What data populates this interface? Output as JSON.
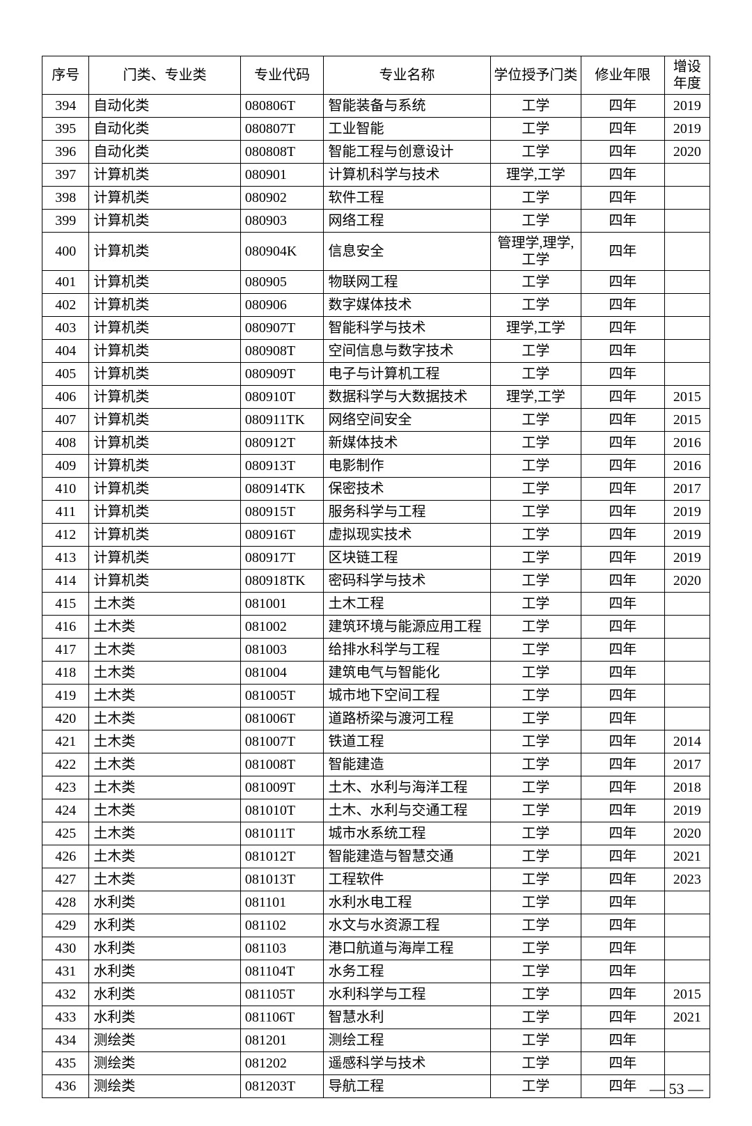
{
  "table": {
    "columns": [
      "序号",
      "门类、专业类",
      "专业代码",
      "专业名称",
      "学位授予门类",
      "修业年限",
      "增设年度"
    ],
    "col_classes": [
      "col-seq",
      "col-cat",
      "col-code",
      "col-name",
      "col-degree",
      "col-years",
      "col-added"
    ],
    "header_align": "center",
    "font_size_pt": 15,
    "border_color": "#000000",
    "background_color": "#ffffff",
    "rows": [
      [
        "394",
        "自动化类",
        "080806T",
        "智能装备与系统",
        "工学",
        "四年",
        "2019"
      ],
      [
        "395",
        "自动化类",
        "080807T",
        "工业智能",
        "工学",
        "四年",
        "2019"
      ],
      [
        "396",
        "自动化类",
        "080808T",
        "智能工程与创意设计",
        "工学",
        "四年",
        "2020"
      ],
      [
        "397",
        "计算机类",
        "080901",
        "计算机科学与技术",
        "理学,工学",
        "四年",
        ""
      ],
      [
        "398",
        "计算机类",
        "080902",
        "软件工程",
        "工学",
        "四年",
        ""
      ],
      [
        "399",
        "计算机类",
        "080903",
        "网络工程",
        "工学",
        "四年",
        ""
      ],
      [
        "400",
        "计算机类",
        "080904K",
        "信息安全",
        "管理学,理学,工学",
        "四年",
        ""
      ],
      [
        "401",
        "计算机类",
        "080905",
        "物联网工程",
        "工学",
        "四年",
        ""
      ],
      [
        "402",
        "计算机类",
        "080906",
        "数字媒体技术",
        "工学",
        "四年",
        ""
      ],
      [
        "403",
        "计算机类",
        "080907T",
        "智能科学与技术",
        "理学,工学",
        "四年",
        ""
      ],
      [
        "404",
        "计算机类",
        "080908T",
        "空间信息与数字技术",
        "工学",
        "四年",
        ""
      ],
      [
        "405",
        "计算机类",
        "080909T",
        "电子与计算机工程",
        "工学",
        "四年",
        ""
      ],
      [
        "406",
        "计算机类",
        "080910T",
        "数据科学与大数据技术",
        "理学,工学",
        "四年",
        "2015"
      ],
      [
        "407",
        "计算机类",
        "080911TK",
        "网络空间安全",
        "工学",
        "四年",
        "2015"
      ],
      [
        "408",
        "计算机类",
        "080912T",
        "新媒体技术",
        "工学",
        "四年",
        "2016"
      ],
      [
        "409",
        "计算机类",
        "080913T",
        "电影制作",
        "工学",
        "四年",
        "2016"
      ],
      [
        "410",
        "计算机类",
        "080914TK",
        "保密技术",
        "工学",
        "四年",
        "2017"
      ],
      [
        "411",
        "计算机类",
        "080915T",
        "服务科学与工程",
        "工学",
        "四年",
        "2019"
      ],
      [
        "412",
        "计算机类",
        "080916T",
        "虚拟现实技术",
        "工学",
        "四年",
        "2019"
      ],
      [
        "413",
        "计算机类",
        "080917T",
        "区块链工程",
        "工学",
        "四年",
        "2019"
      ],
      [
        "414",
        "计算机类",
        "080918TK",
        "密码科学与技术",
        "工学",
        "四年",
        "2020"
      ],
      [
        "415",
        "土木类",
        "081001",
        "土木工程",
        "工学",
        "四年",
        ""
      ],
      [
        "416",
        "土木类",
        "081002",
        "建筑环境与能源应用工程",
        "工学",
        "四年",
        ""
      ],
      [
        "417",
        "土木类",
        "081003",
        "给排水科学与工程",
        "工学",
        "四年",
        ""
      ],
      [
        "418",
        "土木类",
        "081004",
        "建筑电气与智能化",
        "工学",
        "四年",
        ""
      ],
      [
        "419",
        "土木类",
        "081005T",
        "城市地下空间工程",
        "工学",
        "四年",
        ""
      ],
      [
        "420",
        "土木类",
        "081006T",
        "道路桥梁与渡河工程",
        "工学",
        "四年",
        ""
      ],
      [
        "421",
        "土木类",
        "081007T",
        "铁道工程",
        "工学",
        "四年",
        "2014"
      ],
      [
        "422",
        "土木类",
        "081008T",
        "智能建造",
        "工学",
        "四年",
        "2017"
      ],
      [
        "423",
        "土木类",
        "081009T",
        "土木、水利与海洋工程",
        "工学",
        "四年",
        "2018"
      ],
      [
        "424",
        "土木类",
        "081010T",
        "土木、水利与交通工程",
        "工学",
        "四年",
        "2019"
      ],
      [
        "425",
        "土木类",
        "081011T",
        "城市水系统工程",
        "工学",
        "四年",
        "2020"
      ],
      [
        "426",
        "土木类",
        "081012T",
        "智能建造与智慧交通",
        "工学",
        "四年",
        "2021"
      ],
      [
        "427",
        "土木类",
        "081013T",
        "工程软件",
        "工学",
        "四年",
        "2023"
      ],
      [
        "428",
        "水利类",
        "081101",
        "水利水电工程",
        "工学",
        "四年",
        ""
      ],
      [
        "429",
        "水利类",
        "081102",
        "水文与水资源工程",
        "工学",
        "四年",
        ""
      ],
      [
        "430",
        "水利类",
        "081103",
        "港口航道与海岸工程",
        "工学",
        "四年",
        ""
      ],
      [
        "431",
        "水利类",
        "081104T",
        "水务工程",
        "工学",
        "四年",
        ""
      ],
      [
        "432",
        "水利类",
        "081105T",
        "水利科学与工程",
        "工学",
        "四年",
        "2015"
      ],
      [
        "433",
        "水利类",
        "081106T",
        "智慧水利",
        "工学",
        "四年",
        "2021"
      ],
      [
        "434",
        "测绘类",
        "081201",
        "测绘工程",
        "工学",
        "四年",
        ""
      ],
      [
        "435",
        "测绘类",
        "081202",
        "遥感科学与技术",
        "工学",
        "四年",
        ""
      ],
      [
        "436",
        "测绘类",
        "081203T",
        "导航工程",
        "工学",
        "四年",
        ""
      ]
    ]
  },
  "page_number": "— 53 —"
}
